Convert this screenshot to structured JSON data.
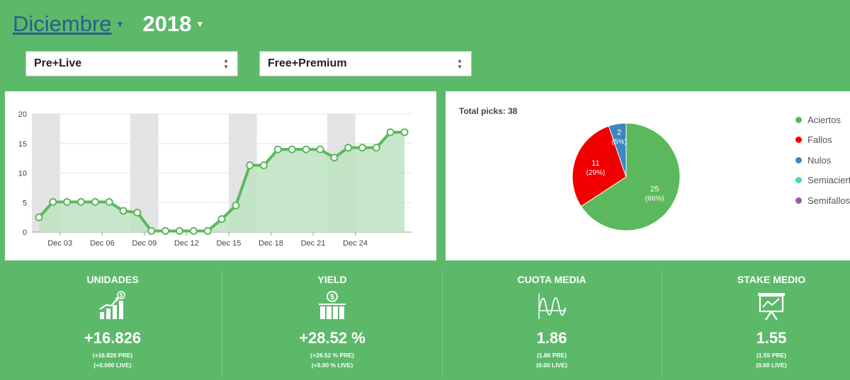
{
  "header": {
    "month": "Diciembre",
    "year": "2018"
  },
  "filters": {
    "type": "Pre+Live",
    "plan": "Free+Premium"
  },
  "line_chart": {
    "chart_data": {
      "type": "area",
      "x_tick_labels": [
        "Dec 03",
        "Dec 06",
        "Dec 09",
        "Dec 12",
        "Dec 15",
        "Dec 18",
        "Dec 21",
        "Dec 24"
      ],
      "y_tick_labels": [
        "0",
        "5",
        "10",
        "15",
        "20"
      ],
      "ylim": [
        0,
        20
      ],
      "xlim": [
        0.5,
        27.5
      ],
      "x": [
        1,
        2,
        3,
        4,
        5,
        6,
        7,
        8,
        9,
        10,
        11,
        12,
        13,
        14,
        15,
        16,
        17,
        18,
        19,
        20,
        21,
        22,
        23,
        24,
        25,
        26,
        27
      ],
      "values": [
        2.5,
        5.1,
        5.1,
        5.1,
        5.1,
        5.1,
        3.6,
        3.3,
        0.2,
        0.2,
        0.2,
        0.2,
        0.2,
        2.2,
        4.5,
        11.3,
        11.3,
        14.0,
        14.0,
        14.0,
        14.0,
        12.6,
        14.3,
        14.3,
        14.3,
        16.9,
        16.9
      ],
      "weekend_bands": [
        [
          0.5,
          2.5
        ],
        [
          7.5,
          9.5
        ],
        [
          14.5,
          16.5
        ],
        [
          21.5,
          23.5
        ]
      ],
      "line_color": "#5cb85c",
      "fill_color": "#bde3c1",
      "band_color": "#e3e3e3"
    }
  },
  "pie": {
    "total_label": "Total picks: 38",
    "chart_data": {
      "type": "pie",
      "slices": [
        {
          "name": "Aciertos",
          "value": 25,
          "label": "25",
          "pct": "(66%)",
          "color": "#5cb85c"
        },
        {
          "name": "Fallos",
          "value": 11,
          "label": "11",
          "pct": "(29%)",
          "color": "#f00000"
        },
        {
          "name": "Nulos",
          "value": 2,
          "label": "2",
          "pct": "(5%)",
          "color": "#3a87c2"
        }
      ],
      "legend": [
        {
          "name": "Aciertos",
          "color": "#5cb85c"
        },
        {
          "name": "Fallos",
          "color": "#f00000"
        },
        {
          "name": "Nulos",
          "color": "#3a87c2"
        },
        {
          "name": "Semiaciertos",
          "color": "#4fdb9a"
        },
        {
          "name": "Semifallos",
          "color": "#9b5ba0"
        }
      ]
    }
  },
  "stats": [
    {
      "title": "UNIDADES",
      "icon": "growth-chart-icon",
      "value": "+16.826",
      "sub1": "(+16.826 PRE)",
      "sub2": "(+0.000 LIVE)"
    },
    {
      "title": "YIELD",
      "icon": "money-bars-icon",
      "value": "+28.52 %",
      "sub1": "(+28.52 % PRE)",
      "sub2": "(+0.00 % LIVE)"
    },
    {
      "title": "CUOTA MEDIA",
      "icon": "waveform-icon",
      "value": "1.86",
      "sub1": "(1.86 PRE)",
      "sub2": "(0.00 LIVE)"
    },
    {
      "title": "STAKE MEDIO",
      "icon": "presentation-board-icon",
      "value": "1.55",
      "sub1": "(1.55 PRE)",
      "sub2": "(0.00 LIVE)"
    }
  ]
}
